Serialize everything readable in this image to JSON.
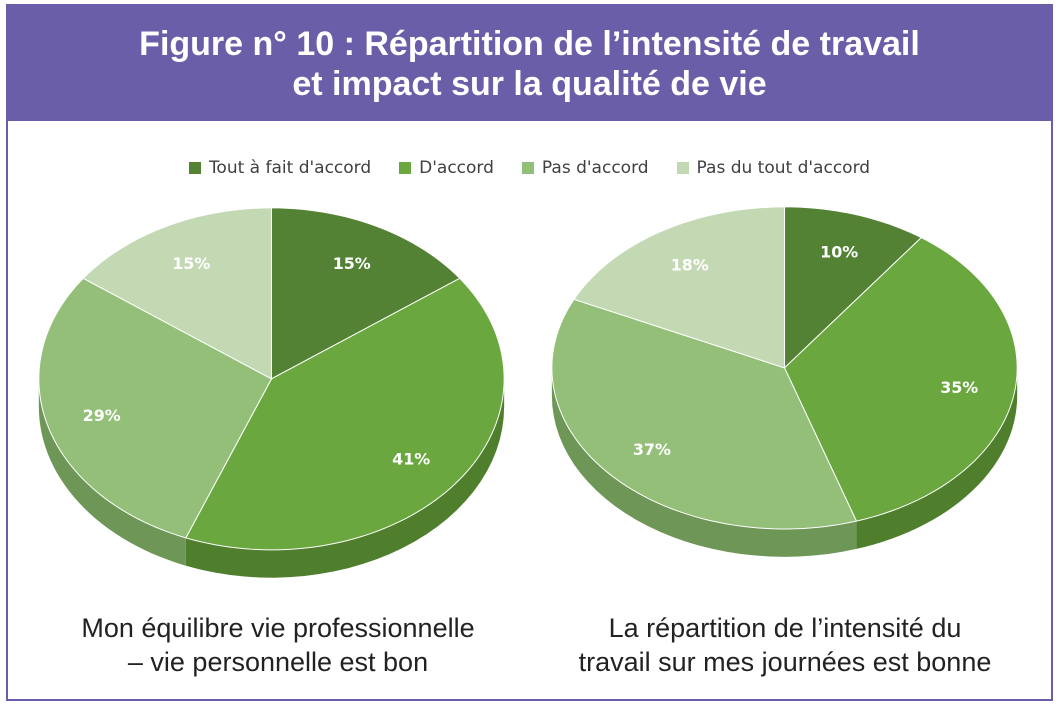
{
  "header": {
    "title_line1": "Figure n° 10 : Répartition de l’intensité de travail",
    "title_line2": "et impact sur la qualité de vie"
  },
  "legend": {
    "items": [
      {
        "label": "Tout à fait d'accord",
        "color": "#548235"
      },
      {
        "label": "D'accord",
        "color": "#6aa73e"
      },
      {
        "label": "Pas d'accord",
        "color": "#93bf78"
      },
      {
        "label": "Pas du tout d'accord",
        "color": "#c3d9b3"
      }
    ]
  },
  "chart_data": [
    {
      "type": "pie",
      "categories": [
        "Tout à fait d'accord",
        "D'accord",
        "Pas d'accord",
        "Pas du tout d'accord"
      ],
      "values": [
        15,
        41,
        29,
        15
      ],
      "labels": [
        "15%",
        "41%",
        "29%",
        "15%"
      ],
      "label_colors": [
        "#ffffff",
        "#ffffff",
        "#ffffff",
        "#ffffff"
      ],
      "caption_line1": "Mon équilibre vie professionnelle",
      "caption_line2": "– vie personnelle est bon"
    },
    {
      "type": "pie",
      "categories": [
        "Tout à fait d'accord",
        "D'accord",
        "Pas d'accord",
        "Pas du tout d'accord"
      ],
      "values": [
        10,
        35,
        37,
        18
      ],
      "labels": [
        "10%",
        "35%",
        "37%",
        "18%"
      ],
      "label_colors": [
        "#ffffff",
        "#ffffff",
        "#ffffff",
        "#ffffff"
      ],
      "caption_line1": "La répartition de l’intensité du",
      "caption_line2": "travail sur mes journées est bonne"
    }
  ]
}
